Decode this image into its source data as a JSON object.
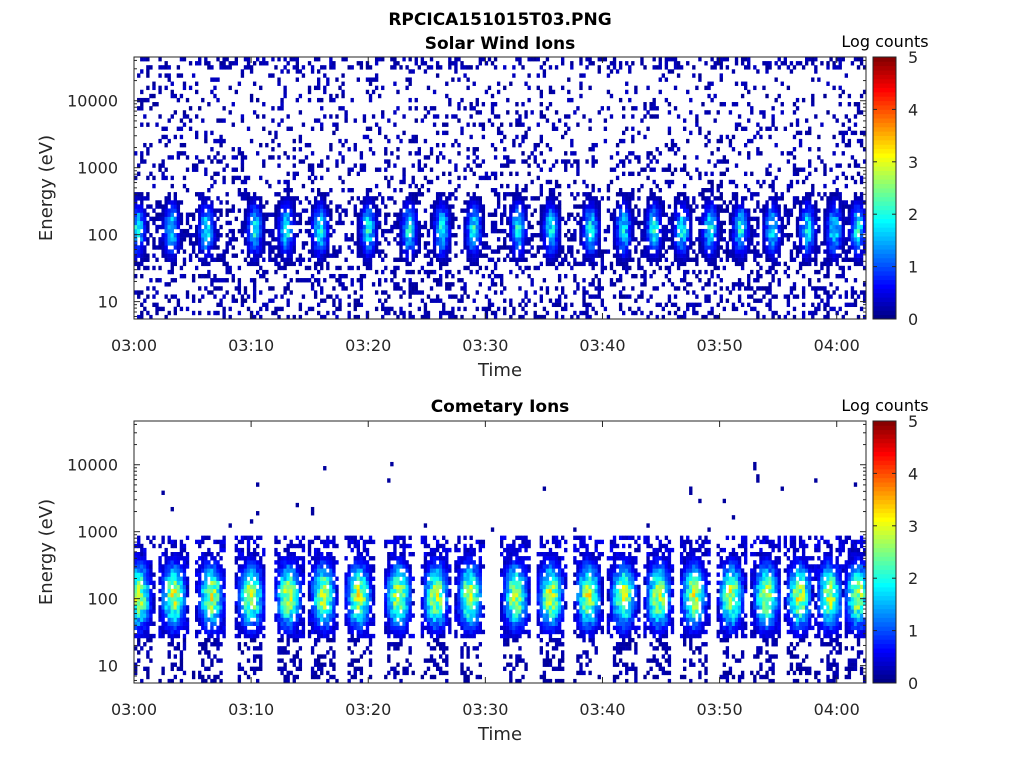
{
  "figure_title": "RPCICA151015T03.PNG",
  "chart_data": [
    {
      "type": "heatmap",
      "title": "Solar Wind Ions",
      "xlabel": "Time",
      "ylabel": "Energy (eV)",
      "x_ticks": [
        "03:00",
        "03:10",
        "03:20",
        "03:30",
        "03:40",
        "03:50",
        "04:00"
      ],
      "x_range_min": [
        0,
        62.5
      ],
      "y_ticks": [
        "10",
        "100",
        "1000",
        "10000"
      ],
      "y_scale": "log",
      "y_range_eV": [
        5.5,
        45000
      ],
      "colorbar": {
        "label": "Log counts",
        "ticks": [
          "0",
          "1",
          "2",
          "3",
          "4",
          "5"
        ],
        "range": [
          0,
          5
        ],
        "colormap": "jet"
      },
      "description_of_bursts_min": [
        0.3,
        3.2,
        6.2,
        10.3,
        13.0,
        15.9,
        20.0,
        23.5,
        26.3,
        29.0,
        32.8,
        35.6,
        39.0,
        41.8,
        44.4,
        46.8,
        49.2,
        51.8,
        54.5,
        57.5,
        59.8,
        61.8
      ],
      "peak_level": 2.2,
      "peak_energy_eV": 120,
      "background_energy_range_eV": [
        300,
        30000
      ]
    },
    {
      "type": "heatmap",
      "title": "Cometary Ions",
      "xlabel": "Time",
      "ylabel": "Energy (eV)",
      "x_ticks": [
        "03:00",
        "03:10",
        "03:20",
        "03:30",
        "03:40",
        "03:50",
        "04:00"
      ],
      "x_range_min": [
        0,
        62.5
      ],
      "y_ticks": [
        "10",
        "100",
        "1000",
        "10000"
      ],
      "y_scale": "log",
      "y_range_eV": [
        5.5,
        45000
      ],
      "colorbar": {
        "label": "Log counts",
        "ticks": [
          "0",
          "1",
          "2",
          "3",
          "4",
          "5"
        ],
        "range": [
          0,
          5
        ],
        "colormap": "jet"
      },
      "description_of_bursts_min": [
        0.4,
        3.4,
        6.6,
        10.0,
        13.2,
        16.2,
        19.2,
        22.6,
        25.8,
        28.7,
        32.6,
        35.6,
        38.8,
        41.8,
        44.8,
        47.8,
        51.0,
        54.0,
        56.8,
        59.4,
        61.8
      ],
      "peak_level": 3.2,
      "peak_energy_eV": 110,
      "band_energy_range_eV": [
        25,
        900
      ]
    }
  ]
}
